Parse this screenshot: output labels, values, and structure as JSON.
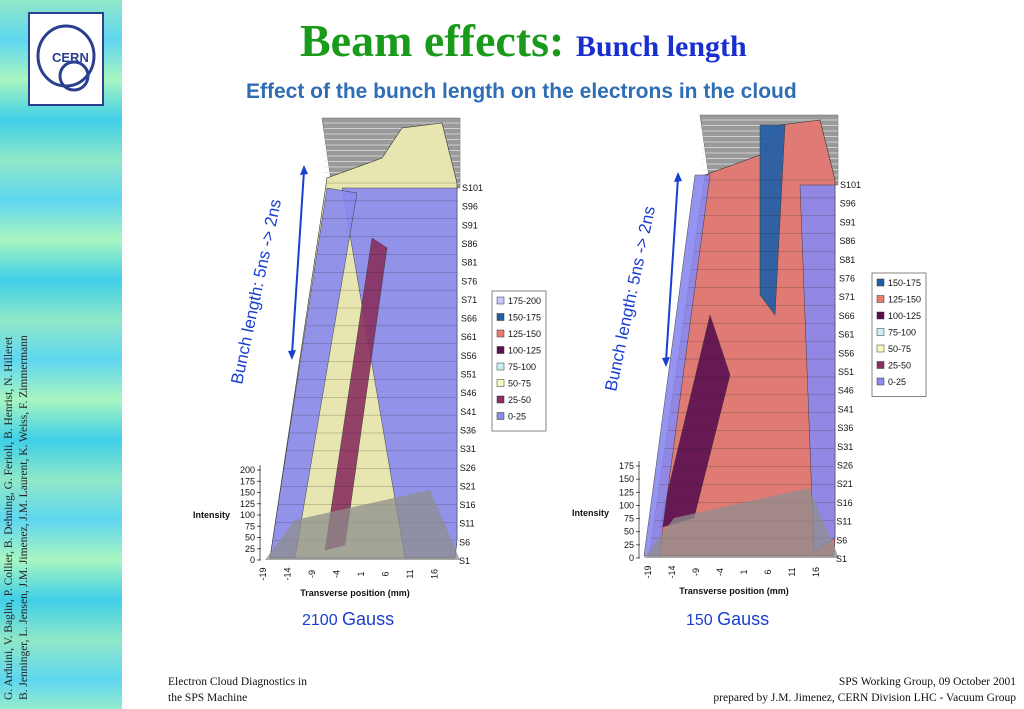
{
  "slide": {
    "title": "Beam effects:",
    "title_sub": "Bunch length",
    "subtitle": "Effect of the bunch length on the electrons in the cloud",
    "logo_text": "CERN",
    "authors_line1": "G. Arduini, V. Baglin, P. Collier, B. Dehning, G. Ferioli, B. Henrist, N. Hilleret",
    "authors_line2": "B. Jenninger, L. Jensen, J.M. Jimenez, J.M. Laurent, K. Weiss, F. Zimmermann",
    "footer_left_line1": "Electron Cloud Diagnostics in",
    "footer_left_line2": "the SPS Machine",
    "footer_right_line1": "SPS Working Group, 09 October 2001",
    "footer_right_line2": "prepared by J.M. Jimenez, CERN Division LHC - Vacuum Group"
  },
  "colors": {
    "title": "#1a9a1a",
    "title_sub": "#1a2fd0",
    "subtitle": "#2f6db5",
    "annotation": "#1a3fd0",
    "wall": "#808080",
    "floor": "#8e8e8e"
  },
  "chart_data": [
    {
      "type": "surface",
      "field_label": "2100",
      "field_unit": "Gauss",
      "annotation": "Bunch length: 5ns -> 2ns",
      "zlabel": "Intensity",
      "xlabel": "Transverse position (mm)",
      "z_ticks": [
        "0",
        "25",
        "50",
        "75",
        "100",
        "125",
        "150",
        "175",
        "200"
      ],
      "x_ticks": [
        "-19",
        "-14",
        "-9",
        "-4",
        "1",
        "6",
        "11",
        "16"
      ],
      "series_labels": [
        "S1",
        "S6",
        "S11",
        "S16",
        "S21",
        "S26",
        "S31",
        "S36",
        "S41",
        "S46",
        "S51",
        "S56",
        "S61",
        "S66",
        "S71",
        "S76",
        "S81",
        "S86",
        "S91",
        "S96",
        "S101"
      ],
      "legend": [
        {
          "label": "175-200",
          "color": "#c8c8ff"
        },
        {
          "label": "150-175",
          "color": "#1f5fa8"
        },
        {
          "label": "125-150",
          "color": "#f07a6a"
        },
        {
          "label": "100-125",
          "color": "#5a0f50"
        },
        {
          "label": "75-100",
          "color": "#c6f2f5"
        },
        {
          "label": "50-75",
          "color": "#fafac0"
        },
        {
          "label": "25-50",
          "color": "#8a3060"
        },
        {
          "label": "0-25",
          "color": "#8a8af0"
        }
      ]
    },
    {
      "type": "surface",
      "field_label": "150",
      "field_unit": "Gauss",
      "annotation": "Bunch length: 5ns -> 2ns",
      "zlabel": "Intensity",
      "xlabel": "Transverse position (mm)",
      "z_ticks": [
        "0",
        "25",
        "50",
        "75",
        "100",
        "125",
        "150",
        "175"
      ],
      "x_ticks": [
        "-19",
        "-14",
        "-9",
        "-4",
        "1",
        "6",
        "11",
        "16"
      ],
      "series_labels": [
        "S1",
        "S6",
        "S11",
        "S16",
        "S21",
        "S26",
        "S31",
        "S36",
        "S41",
        "S46",
        "S51",
        "S56",
        "S61",
        "S66",
        "S71",
        "S76",
        "S81",
        "S86",
        "S91",
        "S96",
        "S101"
      ],
      "legend": [
        {
          "label": "150-175",
          "color": "#1f5fa8"
        },
        {
          "label": "125-150",
          "color": "#f07a6a"
        },
        {
          "label": "100-125",
          "color": "#5a0f50"
        },
        {
          "label": "75-100",
          "color": "#c6f2f5"
        },
        {
          "label": "50-75",
          "color": "#fafac0"
        },
        {
          "label": "25-50",
          "color": "#8a3060"
        },
        {
          "label": "0-25",
          "color": "#8a8af0"
        }
      ]
    }
  ]
}
